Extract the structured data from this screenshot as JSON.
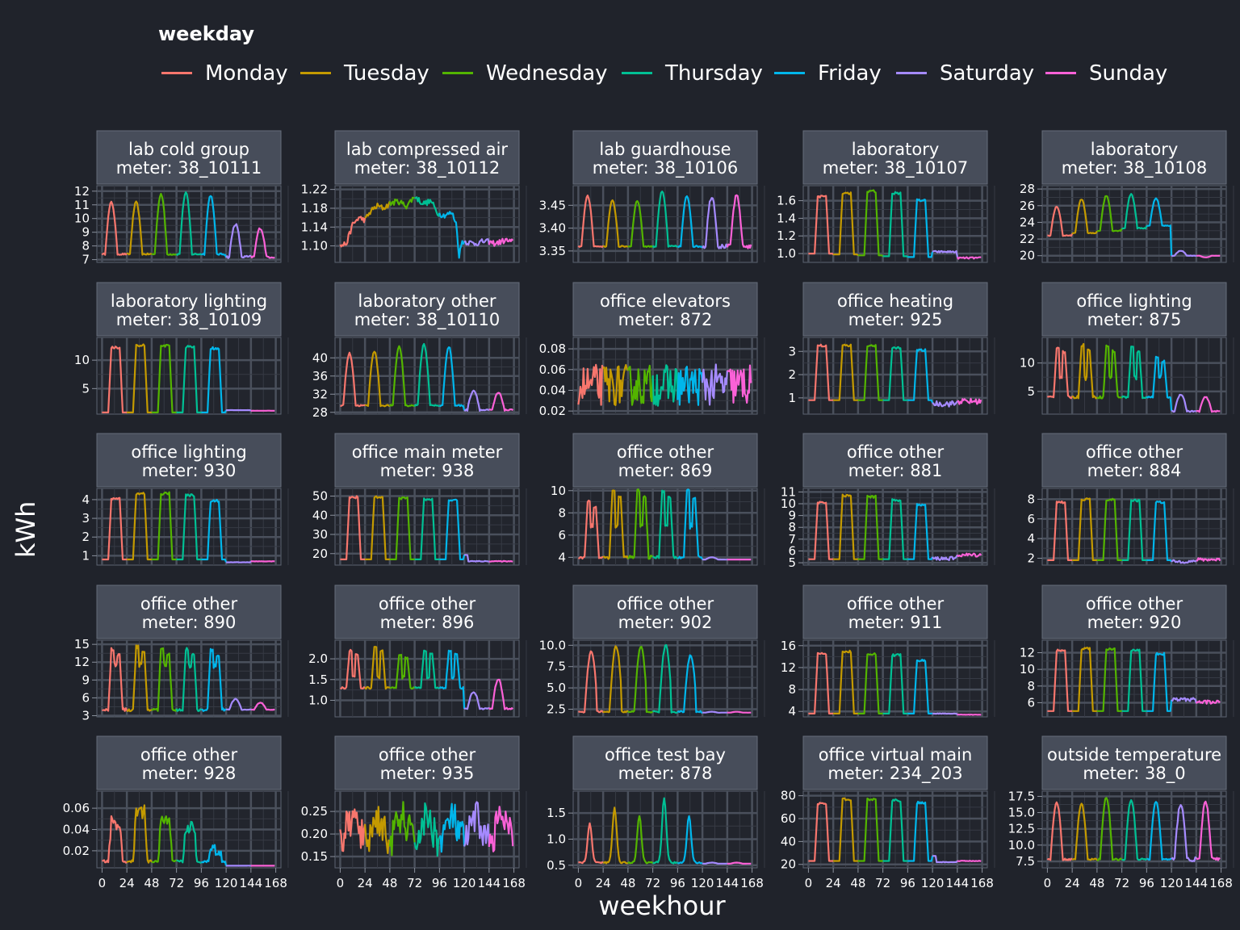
{
  "legend": {
    "title": "weekday",
    "items": [
      {
        "label": "Monday",
        "color": "#f8766d"
      },
      {
        "label": "Tuesday",
        "color": "#c49a00"
      },
      {
        "label": "Wednesday",
        "color": "#53b400"
      },
      {
        "label": "Thursday",
        "color": "#00c094"
      },
      {
        "label": "Friday",
        "color": "#00b6eb"
      },
      {
        "label": "Saturday",
        "color": "#a58aff"
      },
      {
        "label": "Sunday",
        "color": "#fb61d7"
      }
    ]
  },
  "chart_data": {
    "type": "line",
    "xlabel": "weekhour",
    "ylabel": "kWh",
    "x_ticks": [
      0,
      24,
      48,
      72,
      96,
      120,
      144,
      168
    ],
    "xlim": [
      -5,
      173
    ],
    "grid": true,
    "legend_placement": "top",
    "panels": [
      {
        "title": [
          "lab cold group",
          "meter: 38_10111"
        ],
        "ylim": [
          6.8,
          12.4
        ],
        "ticks": [
          7,
          8,
          9,
          10,
          11,
          12
        ],
        "tick_labels": [
          "7",
          "8",
          "9",
          "10",
          "11",
          "12"
        ],
        "profile": {
          "kind": "peaks",
          "base": 7.4,
          "peaks": [
            11.2,
            11.2,
            11.8,
            11.9,
            11.7
          ],
          "sat": 9.6,
          "sun": 9.3,
          "wkbase": 7.2,
          "shape": "sine"
        }
      },
      {
        "title": [
          "lab compressed air",
          "meter: 38_10112"
        ],
        "ylim": [
          1.065,
          1.228
        ],
        "ticks": [
          1.1,
          1.14,
          1.18,
          1.22
        ],
        "tick_labels": [
          "1.10",
          "1.14",
          "1.18",
          "1.22"
        ],
        "profile": {
          "kind": "points",
          "pts": [
            [
              0,
              1.1
            ],
            [
              6,
              1.105
            ],
            [
              12,
              1.145
            ],
            [
              18,
              1.16
            ],
            [
              24,
              1.155
            ],
            [
              30,
              1.175
            ],
            [
              36,
              1.185
            ],
            [
              42,
              1.18
            ],
            [
              48,
              1.19
            ],
            [
              56,
              1.195
            ],
            [
              64,
              1.185
            ],
            [
              72,
              1.205
            ],
            [
              80,
              1.19
            ],
            [
              88,
              1.195
            ],
            [
              94,
              1.17
            ],
            [
              100,
              1.165
            ],
            [
              108,
              1.17
            ],
            [
              112,
              1.15
            ],
            [
              115,
              1.08
            ],
            [
              118,
              1.11
            ],
            [
              130,
              1.105
            ],
            [
              140,
              1.11
            ],
            [
              150,
              1.105
            ],
            [
              160,
              1.112
            ],
            [
              167,
              1.108
            ]
          ],
          "noise": 0.006
        }
      },
      {
        "title": [
          "lab guardhouse",
          "meter: 38_10106"
        ],
        "ylim": [
          3.325,
          3.493
        ],
        "ticks": [
          3.35,
          3.4,
          3.45
        ],
        "tick_labels": [
          "3.35",
          "3.40",
          "3.45"
        ],
        "profile": {
          "kind": "peaks",
          "base": 3.36,
          "peaks": [
            3.47,
            3.46,
            3.46,
            3.48,
            3.47
          ],
          "sat": 3.47,
          "sun": 3.47,
          "wkbase": 3.36,
          "shape": "sine"
        }
      },
      {
        "title": [
          "laboratory",
          "meter: 38_10107"
        ],
        "ylim": [
          0.9,
          1.77
        ],
        "ticks": [
          1.0,
          1.2,
          1.4,
          1.6
        ],
        "tick_labels": [
          "1.0",
          "1.2",
          "1.4",
          "1.6"
        ],
        "profile": {
          "kind": "blocks",
          "base": 1.0,
          "peaks": [
            1.66,
            1.7,
            1.72,
            1.7,
            1.62
          ],
          "wk": [
            1.02,
            0.95
          ],
          "trend": true
        }
      },
      {
        "title": [
          "laboratory",
          "meter: 38_10108"
        ],
        "ylim": [
          19.2,
          28.4
        ],
        "ticks": [
          20,
          22,
          24,
          26,
          28
        ],
        "tick_labels": [
          "20",
          "22",
          "24",
          "26",
          "28"
        ],
        "profile": {
          "kind": "peaks",
          "base": 22.4,
          "peaks": [
            25.9,
            26.8,
            27.2,
            27.4,
            26.9
          ],
          "sat": 20.6,
          "sun": 19.8,
          "wkbase": 20.0,
          "shape": "sine",
          "drift": true
        }
      },
      {
        "title": [
          "laboratory lighting",
          "meter: 38_10109"
        ],
        "ylim": [
          0.5,
          14.0
        ],
        "ticks": [
          5,
          10
        ],
        "tick_labels": [
          "5",
          "10"
        ],
        "profile": {
          "kind": "blocks",
          "base": 0.8,
          "peaks": [
            12.5,
            12.8,
            12.8,
            12.6,
            12.3
          ],
          "wk": [
            1.2,
            1.1
          ]
        }
      },
      {
        "title": [
          "laboratory other",
          "meter: 38_10110"
        ],
        "ylim": [
          27.6,
          44.5
        ],
        "ticks": [
          28,
          32,
          36,
          40
        ],
        "tick_labels": [
          "28",
          "32",
          "36",
          "40"
        ],
        "profile": {
          "kind": "peaks",
          "base": 29.5,
          "peaks": [
            41.0,
            41.5,
            42.5,
            43.0,
            42.5
          ],
          "sat": 32.8,
          "sun": 32.3,
          "wkbase": 28.5,
          "shape": "sine"
        }
      },
      {
        "title": [
          "office elevators",
          "meter: 872"
        ],
        "ylim": [
          0.017,
          0.091
        ],
        "ticks": [
          0.02,
          0.04,
          0.06,
          0.08
        ],
        "tick_labels": [
          "0.02",
          "0.04",
          "0.06",
          "0.08"
        ],
        "profile": {
          "kind": "noisy",
          "mean": 0.045,
          "amp": 0.02
        }
      },
      {
        "title": [
          "office heating",
          "meter: 925"
        ],
        "ylim": [
          0.3,
          3.6
        ],
        "ticks": [
          1,
          2,
          3
        ],
        "tick_labels": [
          "1",
          "2",
          "3"
        ],
        "profile": {
          "kind": "blocks",
          "base": 0.9,
          "peaks": [
            3.3,
            3.3,
            3.3,
            3.2,
            3.1
          ],
          "wk": [
            0.7,
            0.8
          ],
          "wknoise": 0.25
        }
      },
      {
        "title": [
          "office lighting",
          "meter: 875"
        ],
        "ylim": [
          1.0,
          14.5
        ],
        "ticks": [
          5,
          10
        ],
        "tick_labels": [
          "5",
          "10"
        ],
        "profile": {
          "kind": "double",
          "base": 4.0,
          "peaks": [
            12.8,
            13.2,
            13.0,
            12.8,
            11.0
          ],
          "mid": 7.5,
          "sat": 4.5,
          "sun": 4.0,
          "wkbase": 1.5
        }
      },
      {
        "title": [
          "office lighting",
          "meter: 930"
        ],
        "ylim": [
          0.5,
          4.6
        ],
        "ticks": [
          1,
          2,
          3,
          4
        ],
        "tick_labels": [
          "1",
          "2",
          "3",
          "4"
        ],
        "profile": {
          "kind": "blocks",
          "base": 0.8,
          "peaks": [
            4.1,
            4.4,
            4.4,
            4.3,
            4.0
          ],
          "wk": [
            0.65,
            0.7
          ]
        }
      },
      {
        "title": [
          "office main meter",
          "meter: 938"
        ],
        "ylim": [
          14.0,
          54.0
        ],
        "ticks": [
          20,
          30,
          40,
          50
        ],
        "tick_labels": [
          "20",
          "30",
          "40",
          "50"
        ],
        "profile": {
          "kind": "blocks",
          "base": 17.0,
          "peaks": [
            50.0,
            50.0,
            49.5,
            49.0,
            48.5
          ],
          "wk": [
            16.0,
            16.0
          ],
          "tail": true
        }
      },
      {
        "title": [
          "office other",
          "meter: 869"
        ],
        "ylim": [
          3.3,
          10.2
        ],
        "ticks": [
          4,
          6,
          8,
          10
        ],
        "tick_labels": [
          "4",
          "6",
          "8",
          "10"
        ],
        "profile": {
          "kind": "double",
          "base": 4.0,
          "peaks": [
            9.0,
            10.0,
            10.0,
            10.0,
            10.0
          ],
          "mid": 6.8,
          "sat": 4.0,
          "sun": 3.8,
          "wkbase": 3.8
        }
      },
      {
        "title": [
          "office other",
          "meter: 881"
        ],
        "ylim": [
          4.8,
          11.3
        ],
        "ticks": [
          5,
          6,
          7,
          8,
          9,
          10,
          11
        ],
        "tick_labels": [
          "5",
          "6",
          "7",
          "8",
          "9",
          "10",
          "11"
        ],
        "profile": {
          "kind": "blocks",
          "base": 5.3,
          "peaks": [
            10.2,
            10.8,
            10.7,
            10.4,
            10.0
          ],
          "wk": [
            5.3,
            5.6
          ],
          "wknoise": 0.3
        }
      },
      {
        "title": [
          "office other",
          "meter: 884"
        ],
        "ylim": [
          1.3,
          9.1
        ],
        "ticks": [
          2,
          4,
          6,
          8
        ],
        "tick_labels": [
          "2",
          "4",
          "6",
          "8"
        ],
        "profile": {
          "kind": "blocks",
          "base": 1.8,
          "peaks": [
            7.8,
            8.1,
            8.1,
            8.0,
            7.8
          ],
          "wk": [
            1.6,
            1.8
          ],
          "wknoise": 0.3
        }
      },
      {
        "title": [
          "office other",
          "meter: 890"
        ],
        "ylim": [
          2.8,
          15.7
        ],
        "ticks": [
          3,
          6,
          9,
          12,
          15
        ],
        "tick_labels": [
          "3",
          "6",
          "9",
          "12",
          "15"
        ],
        "profile": {
          "kind": "double",
          "base": 4.0,
          "peaks": [
            14.2,
            14.6,
            14.4,
            14.2,
            14.0
          ],
          "mid": 11.5,
          "sat": 5.8,
          "sun": 5.2,
          "wkbase": 4.0
        }
      },
      {
        "title": [
          "office other",
          "meter: 896"
        ],
        "ylim": [
          0.6,
          2.45
        ],
        "ticks": [
          1.0,
          1.5,
          2.0
        ],
        "tick_labels": [
          "1.0",
          "1.5",
          "2.0"
        ],
        "profile": {
          "kind": "double",
          "base": 1.3,
          "peaks": [
            2.2,
            2.3,
            2.1,
            2.2,
            2.2
          ],
          "mid": 1.55,
          "sat": 1.2,
          "sun": 1.5,
          "wkbase": 0.8
        }
      },
      {
        "title": [
          "office other",
          "meter: 902"
        ],
        "ylim": [
          1.6,
          10.6
        ],
        "ticks": [
          2.5,
          5.0,
          7.5,
          10.0
        ],
        "tick_labels": [
          "2.5",
          "5.0",
          "7.5",
          "10.0"
        ],
        "profile": {
          "kind": "peaks",
          "base": 2.2,
          "peaks": [
            9.3,
            9.9,
            9.9,
            10.0,
            8.8
          ],
          "sat": 2.2,
          "sun": 2.2,
          "wkbase": 2.1,
          "shape": "block"
        }
      },
      {
        "title": [
          "office other",
          "meter: 911"
        ],
        "ylim": [
          3.0,
          17.0
        ],
        "ticks": [
          4,
          8,
          12,
          16
        ],
        "tick_labels": [
          "4",
          "8",
          "12",
          "16"
        ],
        "profile": {
          "kind": "blocks",
          "base": 3.6,
          "peaks": [
            14.8,
            15.2,
            14.7,
            14.5,
            13.5
          ],
          "wk": [
            3.6,
            3.4
          ]
        }
      },
      {
        "title": [
          "office other",
          "meter: 920"
        ],
        "ylim": [
          4.3,
          13.5
        ],
        "ticks": [
          6,
          8,
          10,
          12
        ],
        "tick_labels": [
          "6",
          "8",
          "10",
          "12"
        ],
        "profile": {
          "kind": "blocks",
          "base": 5.0,
          "peaks": [
            12.4,
            12.6,
            12.6,
            12.4,
            12.0
          ],
          "wk": [
            6.3,
            6.0
          ],
          "wknoise": 0.4
        }
      },
      {
        "title": [
          "office other",
          "meter: 928"
        ],
        "ylim": [
          0.004,
          0.076
        ],
        "ticks": [
          0.02,
          0.04,
          0.06
        ],
        "tick_labels": [
          "0.02",
          "0.04",
          "0.06"
        ],
        "profile": {
          "kind": "blocks",
          "base": 0.01,
          "peaks": [
            0.047,
            0.057,
            0.048,
            0.043,
            0.022
          ],
          "wk": [
            0.006,
            0.006
          ],
          "noisy": 0.006
        }
      },
      {
        "title": [
          "office other",
          "meter: 935"
        ],
        "ylim": [
          0.125,
          0.295
        ],
        "ticks": [
          0.15,
          0.2,
          0.25
        ],
        "tick_labels": [
          "0.15",
          "0.20",
          "0.25"
        ],
        "profile": {
          "kind": "noisyb",
          "mean": 0.21,
          "amp": 0.04
        }
      },
      {
        "title": [
          "office test bay",
          "meter: 878"
        ],
        "ylim": [
          0.45,
          1.92
        ],
        "ticks": [
          0.5,
          1.0,
          1.5
        ],
        "tick_labels": [
          "0.5",
          "1.0",
          "1.5"
        ],
        "profile": {
          "kind": "peaks",
          "base": 0.55,
          "peaks": [
            1.3,
            1.6,
            1.45,
            1.8,
            1.45
          ],
          "sat": 0.55,
          "sun": 0.55,
          "wkbase": 0.53,
          "shape": "sharp"
        }
      },
      {
        "title": [
          "office virtual main",
          "meter: 234_203"
        ],
        "ylim": [
          17.0,
          84.0
        ],
        "ticks": [
          20,
          40,
          60,
          80
        ],
        "tick_labels": [
          "20",
          "40",
          "60",
          "80"
        ],
        "profile": {
          "kind": "blocks",
          "base": 23.0,
          "peaks": [
            74.0,
            78.0,
            78.0,
            77.0,
            75.0
          ],
          "wk": [
            22.0,
            23.0
          ],
          "tail": true
        }
      },
      {
        "title": [
          "outside temperature",
          "meter: 38_0"
        ],
        "ylim": [
          6.5,
          18.3
        ],
        "ticks": [
          7.5,
          10.0,
          12.5,
          15.0,
          17.5
        ],
        "tick_labels": [
          "7.5",
          "10.0",
          "12.5",
          "15.0",
          "17.5"
        ],
        "profile": {
          "kind": "peaks",
          "base": 7.8,
          "peaks": [
            16.5,
            16.3,
            17.3,
            17.0,
            16.7
          ],
          "sat": 16.4,
          "sun": 16.5,
          "wkbase": 7.8,
          "shape": "sine"
        }
      }
    ]
  }
}
